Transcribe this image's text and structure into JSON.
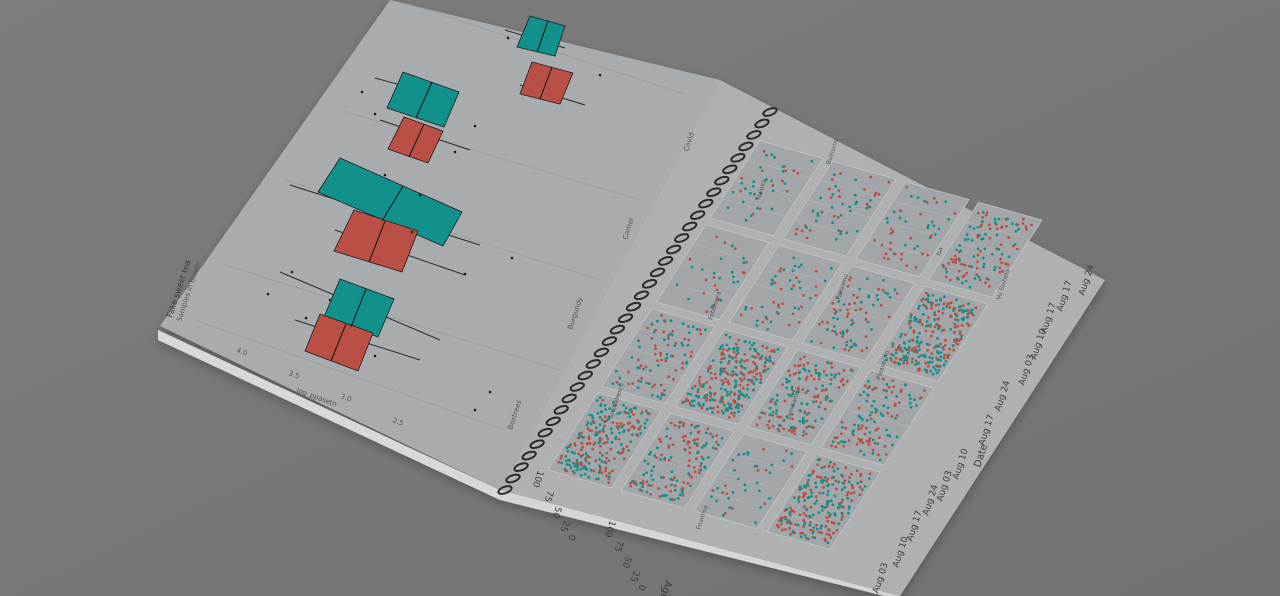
{
  "colors": {
    "background": "#7a7a7a",
    "page": "#a9acae",
    "panel": "#a3a6a8",
    "teal": "#12908c",
    "red": "#b94f45",
    "ring": "#2b2b2b"
  },
  "left_page": {
    "title": "Fake sweet tea",
    "subtitle": "Samples in Bloom",
    "axis_label": "log_ppasetn",
    "axis_ticks": [
      "4.0",
      "3.5",
      "3.0",
      "2.5"
    ],
    "categories": [
      "Boxtrees",
      "Burgundy",
      "Camel",
      "Covid"
    ]
  },
  "right_page": {
    "y_axis_label": "Age",
    "x_axis_label": "Date",
    "y_ticks_top": [
      "100",
      "75",
      "50",
      "25",
      "0"
    ],
    "y_ticks_bottom": [
      "100",
      "75",
      "50",
      "25",
      "0"
    ],
    "date_ticks_a": [
      "Aug 17",
      "Aug 24"
    ],
    "date_ticks_b": [
      "Aug 03",
      "Aug 10",
      "Aug 17",
      "Aug 24"
    ],
    "date_ticks_c": [
      "Aug 03",
      "Aug 10",
      "Aug 17",
      "Aug 24"
    ],
    "date_ticks_d": [
      "Aug 03",
      "Aug 10",
      "Aug 17",
      "Aug 24"
    ],
    "strip_labels": [
      "Sotcuabesco",
      "Fnanlioa",
      "Fabeloera",
      "Dendiamol",
      "Nalolta",
      "Fanasmo",
      "Pleasecho",
      "Bulriorno",
      "Isa",
      "Vu Slabelo"
    ]
  }
}
